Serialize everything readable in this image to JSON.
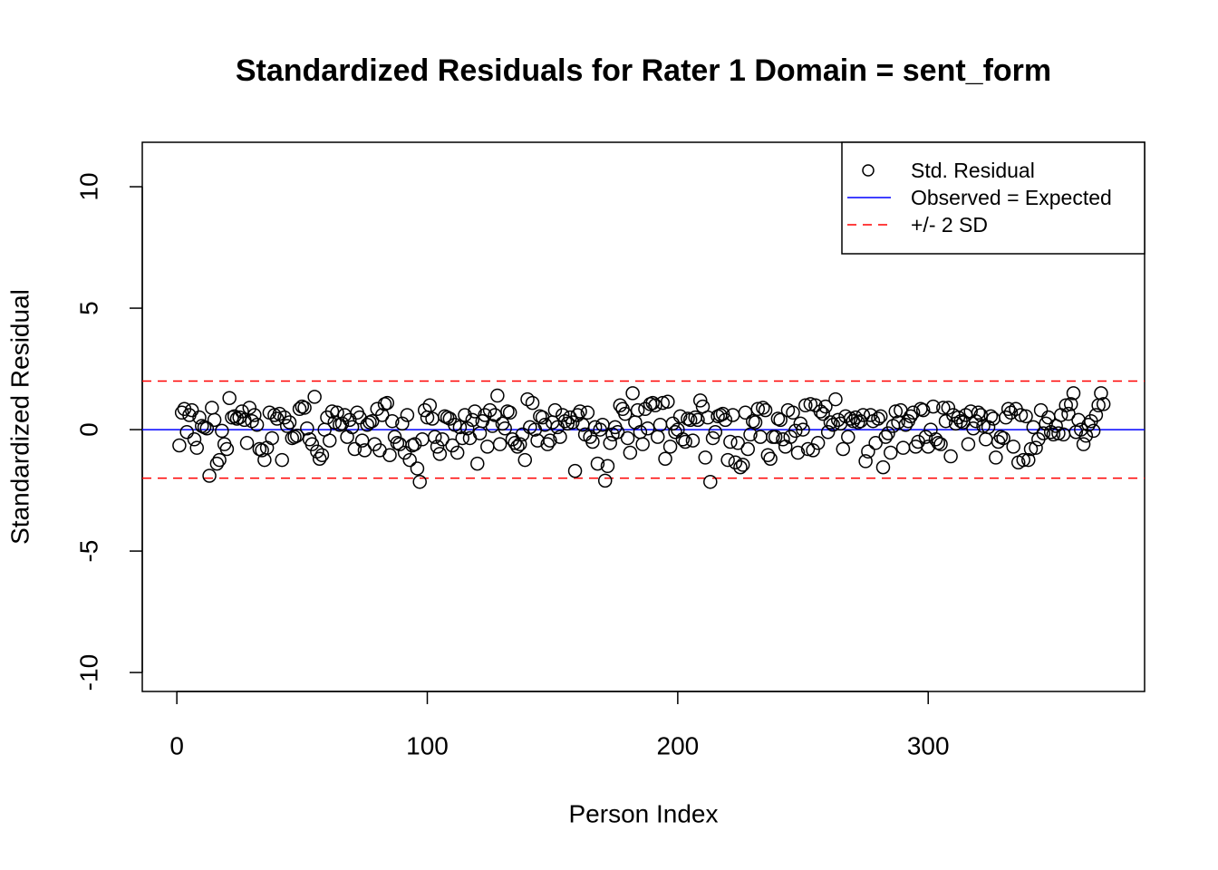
{
  "chart_data": {
    "type": "scatter",
    "title": "Standardized Residuals for Rater 1 Domain = sent_form",
    "xlabel": "Person Index",
    "ylabel": "Standardized Residual",
    "xlim": [
      -13.8,
      386.4
    ],
    "ylim": [
      -10.78,
      11.83
    ],
    "xticks": [
      0,
      100,
      200,
      300
    ],
    "yticks": [
      -10,
      -5,
      0,
      5,
      10
    ],
    "legend_position": "top-right",
    "series": [
      {
        "name": "Std. Residual",
        "color": "#000000",
        "x": [
          1,
          2,
          3,
          4,
          5,
          6,
          7,
          8,
          9,
          10,
          11,
          12,
          13,
          14,
          15,
          16,
          17,
          18,
          19,
          20,
          21,
          22,
          23,
          24,
          25,
          26,
          27,
          28,
          29,
          30,
          31,
          32,
          33,
          34,
          35,
          36,
          37,
          38,
          39,
          40,
          41,
          42,
          43,
          44,
          45,
          46,
          47,
          48,
          49,
          50,
          51,
          52,
          53,
          54,
          55,
          56,
          57,
          58,
          59,
          60,
          61,
          62,
          63,
          64,
          65,
          66,
          67,
          68,
          69,
          70,
          71,
          72,
          73,
          74,
          75,
          76,
          77,
          78,
          79,
          80,
          81,
          82,
          83,
          84,
          85,
          86,
          87,
          88,
          89,
          90,
          91,
          92,
          93,
          94,
          95,
          96,
          97,
          98,
          99,
          100,
          101,
          102,
          103,
          104,
          105,
          106,
          107,
          108,
          109,
          110,
          111,
          112,
          113,
          114,
          115,
          116,
          117,
          118,
          119,
          120,
          121,
          122,
          123,
          124,
          125,
          126,
          127,
          128,
          129,
          130,
          131,
          132,
          133,
          134,
          135,
          136,
          137,
          138,
          139,
          140,
          141,
          142,
          143,
          144,
          145,
          146,
          147,
          148,
          149,
          150,
          151,
          152,
          153,
          154,
          155,
          156,
          157,
          158,
          159,
          160,
          161,
          162,
          163,
          164,
          165,
          166,
          167,
          168,
          169,
          170,
          171,
          172,
          173,
          174,
          175,
          176,
          177,
          178,
          179,
          180,
          181,
          182,
          183,
          184,
          185,
          186,
          187,
          188,
          189,
          190,
          191,
          192,
          193,
          194,
          195,
          196,
          197,
          198,
          199,
          200,
          201,
          202,
          203,
          204,
          205,
          206,
          207,
          208,
          209,
          210,
          211,
          212,
          213,
          214,
          215,
          216,
          217,
          218,
          219,
          220,
          221,
          222,
          223,
          224,
          225,
          226,
          227,
          228,
          229,
          230,
          231,
          232,
          233,
          234,
          235,
          236,
          237,
          238,
          239,
          240,
          241,
          242,
          243,
          244,
          245,
          246,
          247,
          248,
          249,
          250,
          251,
          252,
          253,
          254,
          255,
          256,
          257,
          258,
          259,
          260,
          261,
          262,
          263,
          264,
          265,
          266,
          267,
          268,
          269,
          270,
          271,
          272,
          273,
          274,
          275,
          276,
          277,
          278,
          279,
          280,
          281,
          282,
          283,
          284,
          285,
          286,
          287,
          288,
          289,
          290,
          291,
          292,
          293,
          294,
          295,
          296,
          297,
          298,
          299,
          300,
          301,
          302,
          303,
          304,
          305,
          306,
          307,
          308,
          309,
          310,
          311,
          312,
          313,
          314,
          315,
          316,
          317,
          318,
          319,
          320,
          321,
          322,
          323,
          324,
          325,
          326,
          327,
          328,
          329,
          330,
          331,
          332,
          333,
          334,
          335,
          336,
          337,
          338,
          339,
          340,
          341,
          342,
          343,
          344,
          345,
          346,
          347,
          348,
          349,
          350,
          351,
          352,
          353,
          354,
          355,
          356,
          357,
          358,
          359,
          360,
          361,
          362,
          363,
          364,
          365,
          366,
          367,
          368,
          369,
          370
        ],
        "values": [
          -0.65,
          0.7,
          0.85,
          -0.1,
          0.6,
          0.8,
          -0.4,
          -0.75,
          0.5,
          0.15,
          0.1,
          0.05,
          -1.9,
          0.9,
          0.4,
          -1.4,
          -1.25,
          -0.05,
          -0.6,
          -0.8,
          1.3,
          0.5,
          0.55,
          0.45,
          0.5,
          0.75,
          0.4,
          -0.55,
          0.9,
          0.35,
          0.6,
          0.2,
          -0.8,
          -0.85,
          -1.25,
          -0.75,
          0.7,
          -0.35,
          0.6,
          0.45,
          0.65,
          -1.25,
          0.5,
          0.15,
          0.3,
          -0.35,
          -0.3,
          -0.25,
          0.85,
          0.95,
          0.9,
          0.05,
          -0.4,
          -0.6,
          1.35,
          -0.9,
          -1.2,
          -1.05,
          0.0,
          0.5,
          -0.45,
          0.75,
          0.3,
          0.7,
          0.2,
          0.25,
          0.6,
          -0.3,
          0.4,
          0.1,
          -0.8,
          0.7,
          0.5,
          -0.45,
          -0.85,
          0.2,
          0.3,
          0.35,
          -0.6,
          0.85,
          -0.85,
          0.6,
          1.05,
          1.1,
          -1.05,
          0.35,
          -0.3,
          -0.55,
          -0.6,
          0.25,
          -0.95,
          0.6,
          -1.25,
          -0.65,
          -0.6,
          -1.6,
          -2.15,
          -0.4,
          0.8,
          0.5,
          1.0,
          0.45,
          -0.3,
          -0.7,
          -1.0,
          -0.4,
          0.55,
          0.5,
          0.45,
          -0.65,
          0.2,
          -0.95,
          0.1,
          -0.35,
          0.6,
          0.05,
          -0.35,
          0.4,
          0.75,
          -1.4,
          -0.15,
          0.35,
          0.6,
          -0.7,
          0.8,
          0.15,
          0.6,
          1.4,
          -0.6,
          0.25,
          0.05,
          0.75,
          0.7,
          -0.4,
          -0.55,
          -0.7,
          -0.6,
          -0.2,
          -1.25,
          1.25,
          0.1,
          1.1,
          0.0,
          -0.45,
          0.55,
          0.5,
          0.2,
          -0.6,
          -0.45,
          0.3,
          0.8,
          0.1,
          -0.3,
          0.6,
          0.35,
          0.25,
          0.5,
          0.3,
          -1.7,
          0.6,
          0.75,
          0.2,
          -0.2,
          0.7,
          -0.3,
          -0.5,
          0.1,
          -1.4,
          0.0,
          0.2,
          -2.1,
          -1.5,
          -0.55,
          -0.2,
          0.1,
          -0.1,
          1.0,
          0.85,
          0.65,
          -0.35,
          -0.95,
          1.5,
          0.3,
          0.8,
          -0.1,
          -0.6,
          0.85,
          0.05,
          1.05,
          1.1,
          1.0,
          -0.3,
          0.2,
          1.1,
          -1.2,
          1.15,
          -0.7,
          0.25,
          -0.1,
          0.0,
          0.55,
          -0.4,
          -0.5,
          0.45,
          0.4,
          -0.45,
          0.5,
          0.4,
          1.2,
          0.95,
          -1.15,
          0.5,
          -2.15,
          -0.35,
          -0.1,
          0.55,
          0.6,
          0.65,
          0.4,
          -1.25,
          -0.5,
          0.6,
          -1.35,
          -0.55,
          -1.55,
          -1.45,
          0.7,
          -0.8,
          -0.2,
          0.35,
          0.3,
          0.85,
          -0.3,
          0.9,
          0.8,
          -1.05,
          -1.2,
          -0.3,
          -0.3,
          0.45,
          0.4,
          -0.4,
          -0.7,
          0.8,
          -0.3,
          0.7,
          -0.05,
          -0.95,
          0.25,
          0.0,
          1.0,
          -0.8,
          1.05,
          -0.85,
          1.0,
          -0.55,
          0.75,
          0.65,
          0.95,
          -0.1,
          0.3,
          0.2,
          1.25,
          0.4,
          0.25,
          -0.8,
          0.55,
          -0.3,
          0.45,
          0.35,
          0.5,
          0.3,
          0.35,
          0.6,
          -1.3,
          -0.9,
          0.6,
          0.35,
          -0.55,
          0.45,
          0.55,
          -1.55,
          -0.3,
          -0.15,
          -0.95,
          0.15,
          0.75,
          0.3,
          0.8,
          -0.75,
          0.2,
          0.35,
          0.55,
          0.7,
          -0.7,
          -0.5,
          0.85,
          0.8,
          -0.3,
          -0.7,
          0.0,
          0.95,
          -0.4,
          -0.55,
          -0.6,
          0.9,
          0.35,
          0.9,
          -1.1,
          0.6,
          0.25,
          0.5,
          0.35,
          0.3,
          0.6,
          -0.6,
          0.75,
          0.05,
          0.35,
          0.7,
          0.6,
          0.15,
          -0.4,
          0.1,
          0.55,
          0.45,
          -1.15,
          -0.5,
          -0.3,
          -0.35,
          0.5,
          0.85,
          0.7,
          -0.7,
          0.85,
          -1.35,
          0.6,
          -1.25,
          0.55,
          -1.25,
          -0.8,
          0.1,
          -0.75,
          -0.4,
          0.8,
          -0.15,
          0.25,
          0.5,
          -0.1,
          -0.2,
          0.15,
          -0.15,
          0.6,
          -0.2,
          1.0,
          0.65,
          1.05,
          1.5,
          -0.1,
          0.4,
          0.0,
          -0.6,
          -0.25,
          0.2,
          0.35,
          -0.05,
          0.6,
          1.0,
          1.5,
          1.05
        ]
      }
    ],
    "reference_lines": [
      {
        "name": "Observed = Expected",
        "color": "#0000ff",
        "dashed": false,
        "values": [
          0
        ]
      },
      {
        "name": "+/- 2 SD",
        "color": "#ff0000",
        "dashed": true,
        "values": [
          2,
          -2
        ]
      }
    ]
  }
}
